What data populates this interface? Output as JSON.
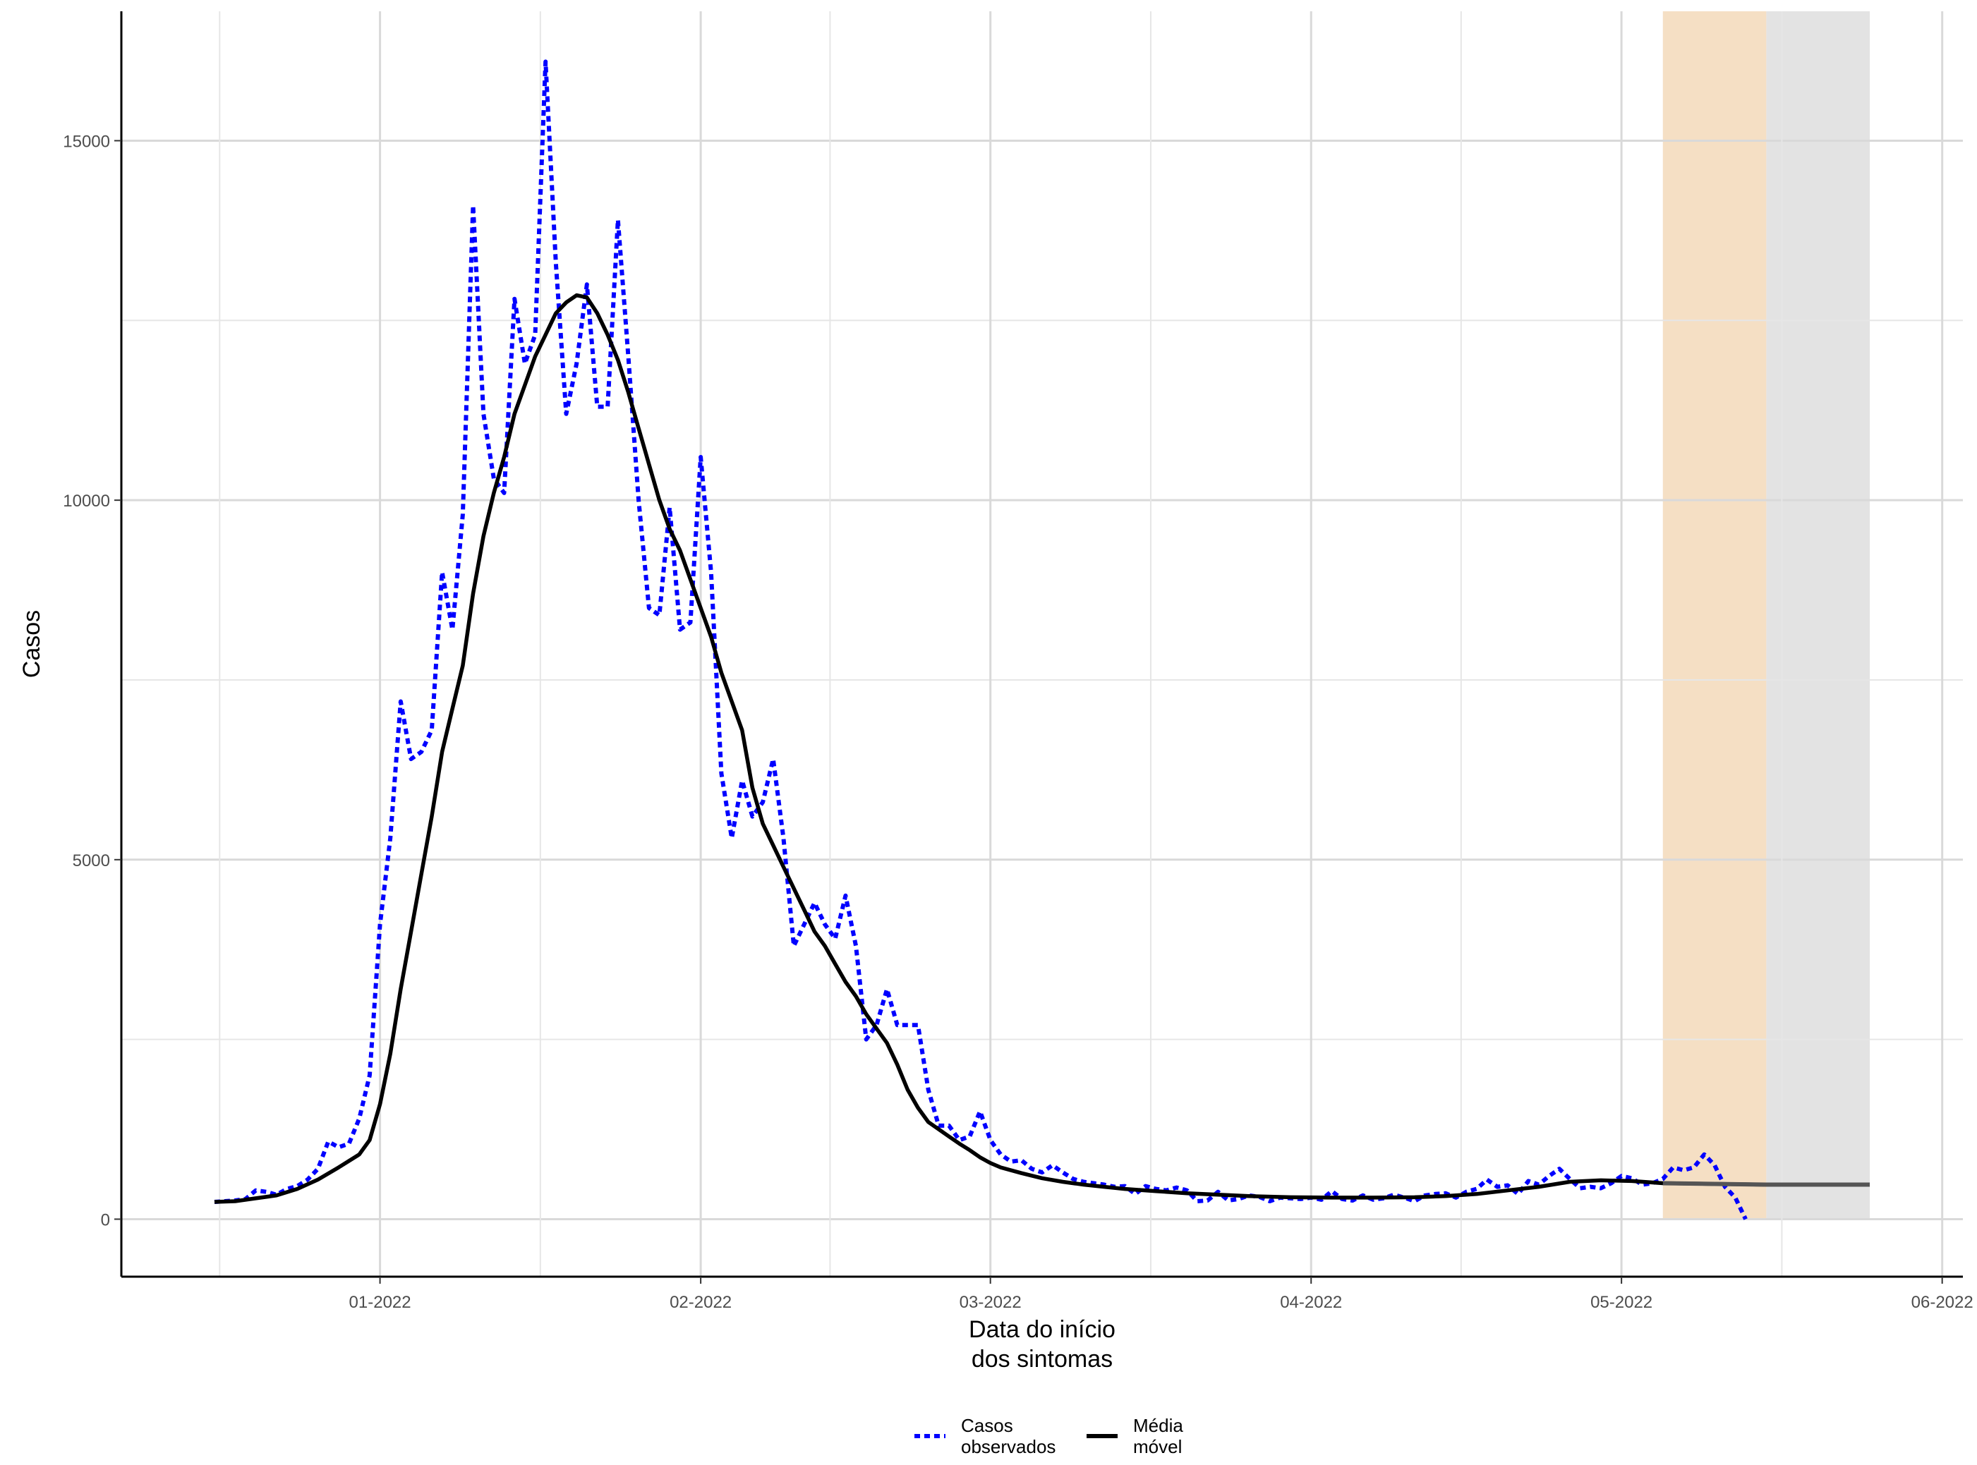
{
  "chart_data": {
    "type": "line",
    "xlabel": [
      "Data do início",
      "dos sintomas"
    ],
    "ylabel": "Casos",
    "x_ticks": [
      "01-2022",
      "02-2022",
      "03-2022",
      "04-2022",
      "05-2022",
      "06-2022"
    ],
    "x_tick_dates": [
      "2022-01-01",
      "2022-02-01",
      "2022-03-01",
      "2022-04-01",
      "2022-05-01",
      "2022-06-01"
    ],
    "y_ticks": [
      0,
      5000,
      10000,
      15000
    ],
    "ylim": [
      -800,
      16800
    ],
    "xlim": [
      "2021-12-07",
      "2022-06-03"
    ],
    "grid": true,
    "legend_position": "bottom",
    "shaded_regions": [
      {
        "start": "2022-05-05",
        "end": "2022-05-15",
        "color": "#f5dfc4"
      },
      {
        "start": "2022-05-15",
        "end": "2022-05-25",
        "color": "#e3e3e3"
      }
    ],
    "series": [
      {
        "name": "Casos\nobservados",
        "color": "#0000ff",
        "style": "dotted",
        "points": [
          [
            "2021-12-16",
            240
          ],
          [
            "2021-12-17",
            250
          ],
          [
            "2021-12-18",
            260
          ],
          [
            "2021-12-19",
            280
          ],
          [
            "2021-12-20",
            400
          ],
          [
            "2021-12-21",
            380
          ],
          [
            "2021-12-22",
            340
          ],
          [
            "2021-12-23",
            420
          ],
          [
            "2021-12-24",
            460
          ],
          [
            "2021-12-25",
            550
          ],
          [
            "2021-12-26",
            700
          ],
          [
            "2021-12-27",
            1080
          ],
          [
            "2021-12-28",
            1000
          ],
          [
            "2021-12-29",
            1050
          ],
          [
            "2021-12-30",
            1400
          ],
          [
            "2021-12-31",
            2000
          ],
          [
            "2022-01-01",
            4100
          ],
          [
            "2022-01-02",
            5300
          ],
          [
            "2022-01-03",
            7200
          ],
          [
            "2022-01-04",
            6400
          ],
          [
            "2022-01-05",
            6500
          ],
          [
            "2022-01-06",
            6800
          ],
          [
            "2022-01-07",
            9000
          ],
          [
            "2022-01-08",
            8200
          ],
          [
            "2022-01-09",
            9800
          ],
          [
            "2022-01-10",
            14100
          ],
          [
            "2022-01-11",
            11200
          ],
          [
            "2022-01-12",
            10300
          ],
          [
            "2022-01-13",
            10100
          ],
          [
            "2022-01-14",
            12800
          ],
          [
            "2022-01-15",
            11900
          ],
          [
            "2022-01-16",
            12300
          ],
          [
            "2022-01-17",
            16100
          ],
          [
            "2022-01-18",
            13300
          ],
          [
            "2022-01-19",
            11200
          ],
          [
            "2022-01-20",
            11900
          ],
          [
            "2022-01-21",
            13000
          ],
          [
            "2022-01-22",
            11300
          ],
          [
            "2022-01-23",
            11300
          ],
          [
            "2022-01-24",
            13900
          ],
          [
            "2022-01-25",
            12000
          ],
          [
            "2022-01-26",
            10000
          ],
          [
            "2022-01-27",
            8500
          ],
          [
            "2022-01-28",
            8400
          ],
          [
            "2022-01-29",
            9900
          ],
          [
            "2022-01-30",
            8200
          ],
          [
            "2022-01-31",
            8300
          ],
          [
            "2022-02-01",
            10600
          ],
          [
            "2022-02-02",
            9000
          ],
          [
            "2022-02-03",
            6200
          ],
          [
            "2022-02-04",
            5300
          ],
          [
            "2022-02-05",
            6100
          ],
          [
            "2022-02-06",
            5600
          ],
          [
            "2022-02-07",
            5800
          ],
          [
            "2022-02-08",
            6400
          ],
          [
            "2022-02-09",
            5300
          ],
          [
            "2022-02-10",
            3800
          ],
          [
            "2022-02-11",
            4100
          ],
          [
            "2022-02-12",
            4400
          ],
          [
            "2022-02-13",
            4100
          ],
          [
            "2022-02-14",
            3900
          ],
          [
            "2022-02-15",
            4500
          ],
          [
            "2022-02-16",
            3800
          ],
          [
            "2022-02-17",
            2500
          ],
          [
            "2022-02-18",
            2700
          ],
          [
            "2022-02-19",
            3200
          ],
          [
            "2022-02-20",
            2700
          ],
          [
            "2022-02-21",
            2700
          ],
          [
            "2022-02-22",
            2700
          ],
          [
            "2022-02-23",
            1800
          ],
          [
            "2022-02-24",
            1300
          ],
          [
            "2022-02-25",
            1300
          ],
          [
            "2022-02-26",
            1100
          ],
          [
            "2022-02-27",
            1150
          ],
          [
            "2022-02-28",
            1500
          ],
          [
            "2022-03-01",
            1100
          ],
          [
            "2022-03-02",
            900
          ],
          [
            "2022-03-03",
            800
          ],
          [
            "2022-03-04",
            820
          ],
          [
            "2022-03-05",
            700
          ],
          [
            "2022-03-06",
            650
          ],
          [
            "2022-03-07",
            750
          ],
          [
            "2022-03-08",
            650
          ],
          [
            "2022-03-09",
            560
          ],
          [
            "2022-03-10",
            520
          ],
          [
            "2022-03-11",
            500
          ],
          [
            "2022-03-12",
            480
          ],
          [
            "2022-03-13",
            450
          ],
          [
            "2022-03-14",
            460
          ],
          [
            "2022-03-15",
            350
          ],
          [
            "2022-03-16",
            460
          ],
          [
            "2022-03-17",
            420
          ],
          [
            "2022-03-18",
            400
          ],
          [
            "2022-03-19",
            440
          ],
          [
            "2022-03-20",
            400
          ],
          [
            "2022-03-21",
            250
          ],
          [
            "2022-03-22",
            260
          ],
          [
            "2022-03-23",
            380
          ],
          [
            "2022-03-24",
            260
          ],
          [
            "2022-03-25",
            280
          ],
          [
            "2022-03-26",
            330
          ],
          [
            "2022-03-27",
            310
          ],
          [
            "2022-03-28",
            250
          ],
          [
            "2022-03-29",
            300
          ],
          [
            "2022-03-30",
            290
          ],
          [
            "2022-03-31",
            280
          ],
          [
            "2022-04-01",
            300
          ],
          [
            "2022-04-02",
            270
          ],
          [
            "2022-04-03",
            390
          ],
          [
            "2022-04-04",
            280
          ],
          [
            "2022-04-05",
            260
          ],
          [
            "2022-04-06",
            330
          ],
          [
            "2022-04-07",
            270
          ],
          [
            "2022-04-08",
            290
          ],
          [
            "2022-04-09",
            340
          ],
          [
            "2022-04-10",
            300
          ],
          [
            "2022-04-11",
            250
          ],
          [
            "2022-04-12",
            330
          ],
          [
            "2022-04-13",
            350
          ],
          [
            "2022-04-14",
            360
          ],
          [
            "2022-04-15",
            300
          ],
          [
            "2022-04-16",
            380
          ],
          [
            "2022-04-17",
            420
          ],
          [
            "2022-04-18",
            550
          ],
          [
            "2022-04-19",
            450
          ],
          [
            "2022-04-20",
            470
          ],
          [
            "2022-04-21",
            350
          ],
          [
            "2022-04-22",
            530
          ],
          [
            "2022-04-23",
            480
          ],
          [
            "2022-04-24",
            600
          ],
          [
            "2022-04-25",
            700
          ],
          [
            "2022-04-26",
            560
          ],
          [
            "2022-04-27",
            430
          ],
          [
            "2022-04-28",
            450
          ],
          [
            "2022-04-29",
            430
          ],
          [
            "2022-04-30",
            500
          ],
          [
            "2022-05-01",
            600
          ],
          [
            "2022-05-02",
            570
          ],
          [
            "2022-05-03",
            480
          ],
          [
            "2022-05-04",
            500
          ],
          [
            "2022-05-05",
            560
          ],
          [
            "2022-05-06",
            720
          ],
          [
            "2022-05-07",
            680
          ],
          [
            "2022-05-08",
            720
          ],
          [
            "2022-05-09",
            900
          ],
          [
            "2022-05-10",
            750
          ],
          [
            "2022-05-11",
            450
          ],
          [
            "2022-05-12",
            300
          ],
          [
            "2022-05-13",
            0
          ]
        ]
      },
      {
        "name": "Média\nmóvel",
        "color": "#000000",
        "style": "solid",
        "points": [
          [
            "2021-12-16",
            240
          ],
          [
            "2021-12-18",
            250
          ],
          [
            "2021-12-20",
            290
          ],
          [
            "2021-12-22",
            330
          ],
          [
            "2021-12-24",
            420
          ],
          [
            "2021-12-26",
            550
          ],
          [
            "2021-12-28",
            720
          ],
          [
            "2021-12-30",
            900
          ],
          [
            "2021-12-31",
            1100
          ],
          [
            "2022-01-01",
            1600
          ],
          [
            "2022-01-02",
            2300
          ],
          [
            "2022-01-03",
            3200
          ],
          [
            "2022-01-04",
            4000
          ],
          [
            "2022-01-05",
            4800
          ],
          [
            "2022-01-06",
            5600
          ],
          [
            "2022-01-07",
            6500
          ],
          [
            "2022-01-08",
            7100
          ],
          [
            "2022-01-09",
            7700
          ],
          [
            "2022-01-10",
            8700
          ],
          [
            "2022-01-11",
            9500
          ],
          [
            "2022-01-12",
            10100
          ],
          [
            "2022-01-13",
            10600
          ],
          [
            "2022-01-14",
            11200
          ],
          [
            "2022-01-15",
            11600
          ],
          [
            "2022-01-16",
            12000
          ],
          [
            "2022-01-17",
            12300
          ],
          [
            "2022-01-18",
            12600
          ],
          [
            "2022-01-19",
            12750
          ],
          [
            "2022-01-20",
            12850
          ],
          [
            "2022-01-21",
            12820
          ],
          [
            "2022-01-22",
            12600
          ],
          [
            "2022-01-23",
            12300
          ],
          [
            "2022-01-24",
            11950
          ],
          [
            "2022-01-25",
            11500
          ],
          [
            "2022-01-26",
            11000
          ],
          [
            "2022-01-27",
            10500
          ],
          [
            "2022-01-28",
            10000
          ],
          [
            "2022-01-29",
            9600
          ],
          [
            "2022-01-30",
            9300
          ],
          [
            "2022-01-31",
            8900
          ],
          [
            "2022-02-01",
            8500
          ],
          [
            "2022-02-02",
            8100
          ],
          [
            "2022-02-03",
            7600
          ],
          [
            "2022-02-04",
            7200
          ],
          [
            "2022-02-05",
            6800
          ],
          [
            "2022-02-06",
            6000
          ],
          [
            "2022-02-07",
            5500
          ],
          [
            "2022-02-08",
            5200
          ],
          [
            "2022-02-09",
            4900
          ],
          [
            "2022-02-10",
            4600
          ],
          [
            "2022-02-11",
            4300
          ],
          [
            "2022-02-12",
            4000
          ],
          [
            "2022-02-13",
            3800
          ],
          [
            "2022-02-14",
            3550
          ],
          [
            "2022-02-15",
            3300
          ],
          [
            "2022-02-16",
            3100
          ],
          [
            "2022-02-17",
            2850
          ],
          [
            "2022-02-18",
            2650
          ],
          [
            "2022-02-19",
            2450
          ],
          [
            "2022-02-20",
            2150
          ],
          [
            "2022-02-21",
            1800
          ],
          [
            "2022-02-22",
            1550
          ],
          [
            "2022-02-23",
            1350
          ],
          [
            "2022-02-24",
            1250
          ],
          [
            "2022-02-25",
            1150
          ],
          [
            "2022-02-26",
            1050
          ],
          [
            "2022-02-27",
            960
          ],
          [
            "2022-02-28",
            860
          ],
          [
            "2022-03-01",
            780
          ],
          [
            "2022-03-02",
            720
          ],
          [
            "2022-03-04",
            640
          ],
          [
            "2022-03-06",
            570
          ],
          [
            "2022-03-08",
            520
          ],
          [
            "2022-03-10",
            480
          ],
          [
            "2022-03-12",
            450
          ],
          [
            "2022-03-14",
            420
          ],
          [
            "2022-03-17",
            390
          ],
          [
            "2022-03-20",
            360
          ],
          [
            "2022-03-23",
            340
          ],
          [
            "2022-03-26",
            320
          ],
          [
            "2022-03-30",
            305
          ],
          [
            "2022-04-03",
            300
          ],
          [
            "2022-04-07",
            300
          ],
          [
            "2022-04-11",
            305
          ],
          [
            "2022-04-14",
            320
          ],
          [
            "2022-04-17",
            350
          ],
          [
            "2022-04-20",
            400
          ],
          [
            "2022-04-23",
            450
          ],
          [
            "2022-04-26",
            520
          ],
          [
            "2022-04-29",
            540
          ],
          [
            "2022-05-02",
            530
          ],
          [
            "2022-05-05",
            500
          ],
          [
            "2022-05-10",
            490
          ],
          [
            "2022-05-15",
            480
          ],
          [
            "2022-05-20",
            480
          ],
          [
            "2022-05-25",
            480
          ]
        ]
      }
    ]
  }
}
